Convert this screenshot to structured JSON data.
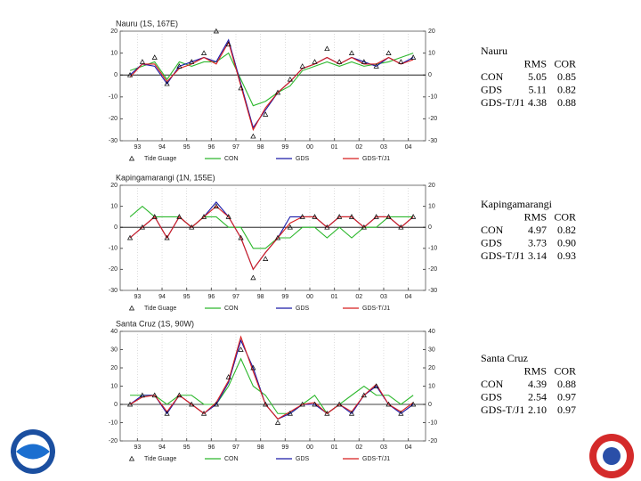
{
  "chart_data": [
    {
      "type": "line",
      "title": "Nauru (1S, 167E)",
      "x": [
        1993.0,
        1993.5,
        1994.0,
        1994.5,
        1995.0,
        1995.5,
        1996.0,
        1996.5,
        1997.0,
        1997.5,
        1998.0,
        1998.5,
        1999.0,
        1999.5,
        2000.0,
        2000.5,
        2001.0,
        2001.5,
        2002.0,
        2002.5,
        2003.0,
        2003.5,
        2004.0,
        2004.5
      ],
      "xlim": [
        1992.6,
        2005.0
      ],
      "xticks": [
        {
          "value": 1993.3,
          "label": "93"
        },
        {
          "value": 1994.3,
          "label": "94"
        },
        {
          "value": 1995.3,
          "label": "95"
        },
        {
          "value": 1996.3,
          "label": "96"
        },
        {
          "value": 1997.3,
          "label": "97"
        },
        {
          "value": 1998.3,
          "label": "98"
        },
        {
          "value": 1999.3,
          "label": "99"
        },
        {
          "value": 2000.3,
          "label": "00"
        },
        {
          "value": 2001.3,
          "label": "01"
        },
        {
          "value": 2002.3,
          "label": "02"
        },
        {
          "value": 2003.3,
          "label": "03"
        },
        {
          "value": 2004.3,
          "label": "04"
        }
      ],
      "ylim": [
        -30,
        20
      ],
      "yticks": [
        -30,
        -20,
        -10,
        0,
        10,
        20
      ],
      "grid": true,
      "hline": 0,
      "series": [
        {
          "name": "Tide Guage",
          "color": "#000000",
          "marker": "triangle",
          "values": [
            0,
            6,
            8,
            -4,
            4,
            6,
            10,
            20,
            14,
            -6,
            -28,
            -18,
            -8,
            -2,
            4,
            6,
            12,
            6,
            10,
            6,
            4,
            10,
            6,
            8
          ]
        },
        {
          "name": "CON",
          "color": "#2db82d",
          "marker": "line",
          "values": [
            2,
            4,
            6,
            -2,
            6,
            4,
            6,
            6,
            10,
            -2,
            -14,
            -12,
            -8,
            -5,
            2,
            4,
            6,
            4,
            6,
            4,
            5,
            6,
            8,
            10
          ]
        },
        {
          "name": "GDS",
          "color": "#1a1aa8",
          "marker": "line",
          "values": [
            0,
            5,
            4,
            -4,
            4,
            6,
            8,
            6,
            16,
            -4,
            -24,
            -16,
            -8,
            -3,
            3,
            5,
            8,
            5,
            8,
            6,
            4,
            8,
            5,
            8
          ]
        },
        {
          "name": "GDS-T/J1",
          "color": "#d81e1e",
          "marker": "line",
          "values": [
            -1,
            5,
            5,
            -3,
            3,
            5,
            8,
            5,
            15,
            -5,
            -25,
            -15,
            -8,
            -3,
            3,
            5,
            8,
            5,
            8,
            5,
            5,
            8,
            5,
            7
          ]
        }
      ],
      "stats": {
        "title": "Nauru",
        "header": [
          "RMS",
          "COR"
        ],
        "rows": [
          [
            "CON",
            "5.05",
            "0.85"
          ],
          [
            "GDS",
            "5.11",
            "0.82"
          ],
          [
            "GDS-T/J1",
            "4.38",
            "0.88"
          ]
        ]
      }
    },
    {
      "type": "line",
      "title": "Kapingamarangi (1N, 155E)",
      "x": [
        1993.0,
        1993.5,
        1994.0,
        1994.5,
        1995.0,
        1995.5,
        1996.0,
        1996.5,
        1997.0,
        1997.5,
        1998.0,
        1998.5,
        1999.0,
        1999.5,
        2000.0,
        2000.5,
        2001.0,
        2001.5,
        2002.0,
        2002.5,
        2003.0,
        2003.5,
        2004.0,
        2004.5
      ],
      "xlim": [
        1992.6,
        2005.0
      ],
      "xticks": [
        {
          "value": 1993.3,
          "label": "93"
        },
        {
          "value": 1994.3,
          "label": "94"
        },
        {
          "value": 1995.3,
          "label": "95"
        },
        {
          "value": 1996.3,
          "label": "96"
        },
        {
          "value": 1997.3,
          "label": "97"
        },
        {
          "value": 1998.3,
          "label": "98"
        },
        {
          "value": 1999.3,
          "label": "99"
        },
        {
          "value": 2000.3,
          "label": "00"
        },
        {
          "value": 2001.3,
          "label": "01"
        },
        {
          "value": 2002.3,
          "label": "02"
        },
        {
          "value": 2003.3,
          "label": "03"
        },
        {
          "value": 2004.3,
          "label": "04"
        }
      ],
      "ylim": [
        -30,
        20
      ],
      "yticks": [
        -30,
        -20,
        -10,
        0,
        10,
        20
      ],
      "grid": true,
      "hline": 0,
      "series": [
        {
          "name": "Tide Guage",
          "color": "#000000",
          "marker": "triangle",
          "values": [
            -5,
            0,
            5,
            -5,
            5,
            0,
            5,
            10,
            5,
            -5,
            -24,
            -15,
            -5,
            0,
            5,
            5,
            0,
            5,
            5,
            0,
            5,
            5,
            0,
            5
          ]
        },
        {
          "name": "CON",
          "color": "#2db82d",
          "marker": "line",
          "values": [
            5,
            10,
            5,
            5,
            5,
            0,
            5,
            5,
            0,
            0,
            -10,
            -10,
            -5,
            -5,
            0,
            0,
            -5,
            0,
            -5,
            0,
            0,
            5,
            5,
            5
          ]
        },
        {
          "name": "GDS",
          "color": "#1a1aa8",
          "marker": "line",
          "values": [
            -5,
            0,
            5,
            -5,
            5,
            0,
            5,
            12,
            5,
            -5,
            -20,
            -12,
            -5,
            5,
            5,
            5,
            0,
            5,
            5,
            0,
            5,
            5,
            0,
            5
          ]
        },
        {
          "name": "GDS-T/J1",
          "color": "#d81e1e",
          "marker": "line",
          "values": [
            -5,
            0,
            5,
            -5,
            5,
            0,
            5,
            10,
            5,
            -5,
            -20,
            -12,
            -5,
            2,
            5,
            5,
            0,
            5,
            5,
            0,
            5,
            5,
            0,
            5
          ]
        }
      ],
      "stats": {
        "title": "Kapingamarangi",
        "header": [
          "RMS",
          "COR"
        ],
        "rows": [
          [
            "CON",
            "4.97",
            "0.82"
          ],
          [
            "GDS",
            "3.73",
            "0.90"
          ],
          [
            "GDS-T/J1",
            "3.14",
            "0.93"
          ]
        ]
      }
    },
    {
      "type": "line",
      "title": "Santa Cruz (1S, 90W)",
      "x": [
        1993.0,
        1993.5,
        1994.0,
        1994.5,
        1995.0,
        1995.5,
        1996.0,
        1996.5,
        1997.0,
        1997.5,
        1998.0,
        1998.5,
        1999.0,
        1999.5,
        2000.0,
        2000.5,
        2001.0,
        2001.5,
        2002.0,
        2002.5,
        2003.0,
        2003.5,
        2004.0,
        2004.5
      ],
      "xlim": [
        1992.6,
        2005.0
      ],
      "xticks": [
        {
          "value": 1993.3,
          "label": "93"
        },
        {
          "value": 1994.3,
          "label": "94"
        },
        {
          "value": 1995.3,
          "label": "95"
        },
        {
          "value": 1996.3,
          "label": "96"
        },
        {
          "value": 1997.3,
          "label": "97"
        },
        {
          "value": 1998.3,
          "label": "98"
        },
        {
          "value": 1999.3,
          "label": "99"
        },
        {
          "value": 2000.3,
          "label": "00"
        },
        {
          "value": 2001.3,
          "label": "01"
        },
        {
          "value": 2002.3,
          "label": "02"
        },
        {
          "value": 2003.3,
          "label": "03"
        },
        {
          "value": 2004.3,
          "label": "04"
        }
      ],
      "ylim": [
        -20,
        40
      ],
      "yticks": [
        -20,
        -10,
        0,
        10,
        20,
        30,
        40
      ],
      "grid": true,
      "hline": 0,
      "series": [
        {
          "name": "Tide Guage",
          "color": "#000000",
          "marker": "triangle",
          "values": [
            0,
            5,
            5,
            -5,
            5,
            0,
            -5,
            0,
            15,
            30,
            20,
            0,
            -10,
            -5,
            0,
            0,
            -5,
            0,
            -5,
            5,
            10,
            0,
            -5,
            0
          ]
        },
        {
          "name": "CON",
          "color": "#2db82d",
          "marker": "line",
          "values": [
            5,
            5,
            5,
            0,
            5,
            5,
            0,
            0,
            10,
            25,
            10,
            5,
            -5,
            -5,
            0,
            5,
            -5,
            0,
            5,
            10,
            5,
            5,
            0,
            5
          ]
        },
        {
          "name": "GDS",
          "color": "#1a1aa8",
          "marker": "line",
          "values": [
            0,
            5,
            5,
            -5,
            5,
            0,
            -5,
            0,
            12,
            35,
            20,
            0,
            -8,
            -5,
            0,
            0,
            -5,
            0,
            -5,
            5,
            10,
            0,
            -5,
            0
          ]
        },
        {
          "name": "GDS-T/J1",
          "color": "#d81e1e",
          "marker": "line",
          "values": [
            0,
            4,
            5,
            -4,
            5,
            0,
            -5,
            1,
            13,
            37,
            18,
            0,
            -8,
            -4,
            0,
            1,
            -5,
            0,
            -4,
            5,
            11,
            0,
            -4,
            1
          ]
        }
      ],
      "stats": {
        "title": "Santa Cruz",
        "header": [
          "RMS",
          "COR"
        ],
        "rows": [
          [
            "CON",
            "4.39",
            "0.88"
          ],
          [
            "GDS",
            "2.54",
            "0.97"
          ],
          [
            "GDS-T/J1",
            "2.10",
            "0.97"
          ]
        ]
      }
    }
  ]
}
